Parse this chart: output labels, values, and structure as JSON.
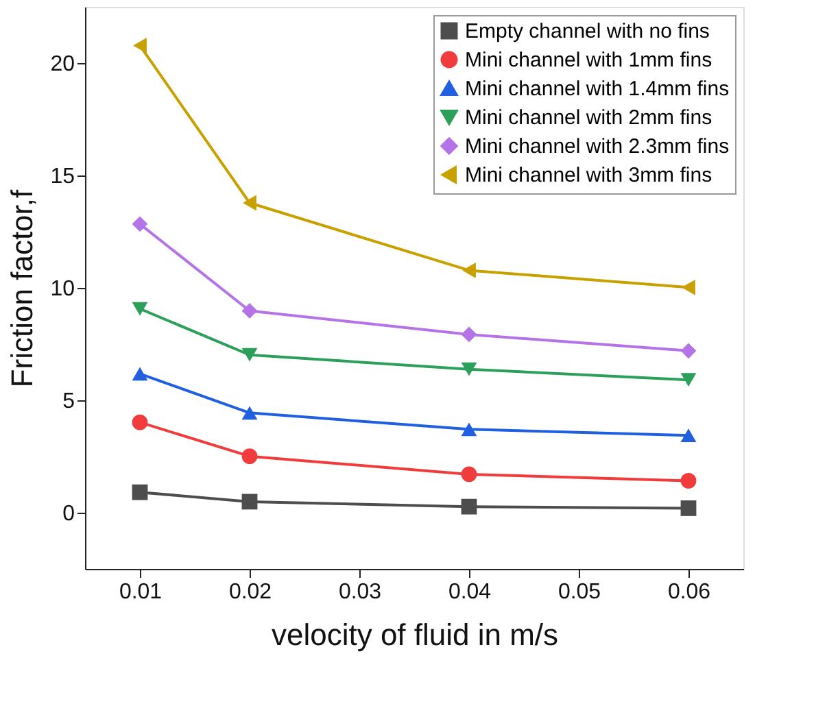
{
  "chart_data": {
    "type": "line",
    "xlabel": "velocity of fluid in m/s",
    "ylabel": "Friction factor,f",
    "x": [
      0.01,
      0.02,
      0.04,
      0.06
    ],
    "xlim": [
      0.005,
      0.065
    ],
    "xticks": [
      0.01,
      0.02,
      0.03,
      0.04,
      0.05,
      0.06
    ],
    "ylim": [
      -2.5,
      22.5
    ],
    "yticks": [
      0,
      5,
      10,
      15,
      20
    ],
    "grid": false,
    "legend": "top right",
    "line_style": "solid",
    "series": [
      {
        "name": "Empty channel with no fins",
        "color": "#4d4d4d",
        "marker": "square",
        "values": [
          0.91,
          0.49,
          0.27,
          0.2
        ]
      },
      {
        "name": "Mini channel with 1mm fins",
        "color": "#f03c3c",
        "marker": "circle",
        "values": [
          4.02,
          2.51,
          1.71,
          1.42
        ]
      },
      {
        "name": "Mini channel with 1.4mm fins",
        "color": "#1f5fe0",
        "marker": "triangle",
        "values": [
          6.18,
          4.44,
          3.71,
          3.44
        ]
      },
      {
        "name": "Mini channel with 2mm fins",
        "color": "#2ca05a",
        "marker": "triangle-down",
        "values": [
          9.07,
          7.02,
          6.38,
          5.91
        ]
      },
      {
        "name": "Mini channel with 2.3mm fins",
        "color": "#b573e8",
        "marker": "diamond",
        "values": [
          12.84,
          8.98,
          7.93,
          7.2
        ]
      },
      {
        "name": "Mini channel with 3mm fins",
        "color": "#c8a000",
        "marker": "triangle-left",
        "values": [
          20.78,
          13.78,
          10.78,
          10.02
        ]
      }
    ]
  }
}
